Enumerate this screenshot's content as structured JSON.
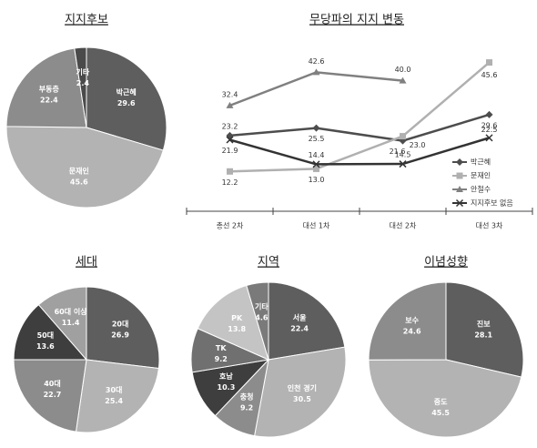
{
  "chart_data": [
    {
      "type": "pie",
      "title": "지지후보",
      "categories": [
        "박근혜",
        "문재인",
        "부동층",
        "기타"
      ],
      "values": [
        29.6,
        45.6,
        22.4,
        2.4
      ],
      "colors": [
        "#5e5e5e",
        "#b3b3b3",
        "#8c8c8c",
        "#4a4a4a"
      ]
    },
    {
      "type": "line",
      "title": "무당파의 지지 변동",
      "categories": [
        "총선 2차",
        "대선 1차",
        "대선 2차",
        "대선 3차"
      ],
      "ylim": [
        0,
        48
      ],
      "series": [
        {
          "name": "박근혜",
          "color": "#4d4d4d",
          "marker": "diamond",
          "values": [
            23.2,
            25.5,
            21.6,
            29.6
          ],
          "value_labels": [
            "23.2",
            "25.5",
            "21.6",
            "29.6"
          ]
        },
        {
          "name": "문재인",
          "color": "#b0b0b0",
          "marker": "square",
          "values": [
            12.2,
            13.0,
            23.0,
            45.6
          ],
          "value_labels": [
            "12.2",
            "13.0",
            "23.0",
            "45.6"
          ]
        },
        {
          "name": "안철수",
          "color": "#808080",
          "marker": "triangle",
          "values": [
            32.4,
            42.6,
            40.0,
            null
          ],
          "value_labels": [
            "32.4",
            "42.6",
            "40.0",
            null
          ]
        },
        {
          "name": "지지후보 없음",
          "color": "#333333",
          "marker": "x",
          "values": [
            21.9,
            14.4,
            14.5,
            22.5
          ],
          "value_labels": [
            "21.9",
            "14.4",
            "14.5",
            "22.5"
          ]
        }
      ]
    },
    {
      "type": "pie",
      "title": "세대",
      "categories": [
        "20대",
        "30대",
        "40대",
        "50대",
        "60대 이상"
      ],
      "values": [
        26.9,
        25.4,
        22.7,
        13.6,
        11.4
      ],
      "colors": [
        "#5e5e5e",
        "#b3b3b3",
        "#8c8c8c",
        "#3e3e3e",
        "#a0a0a0"
      ]
    },
    {
      "type": "pie",
      "title": "지역",
      "categories": [
        "서울",
        "인천 경기",
        "충청",
        "호남",
        "TK",
        "PK",
        "기타"
      ],
      "values": [
        22.4,
        30.5,
        9.2,
        10.3,
        9.2,
        13.8,
        4.6
      ],
      "colors": [
        "#5e5e5e",
        "#b3b3b3",
        "#8c8c8c",
        "#3e3e3e",
        "#707070",
        "#c4c4c4",
        "#7a7a7a"
      ]
    },
    {
      "type": "pie",
      "title": "이념성향",
      "categories": [
        "진보",
        "중도",
        "보수"
      ],
      "values": [
        28.1,
        45.5,
        24.6
      ],
      "colors": [
        "#5e5e5e",
        "#b3b3b3",
        "#8c8c8c"
      ]
    }
  ]
}
